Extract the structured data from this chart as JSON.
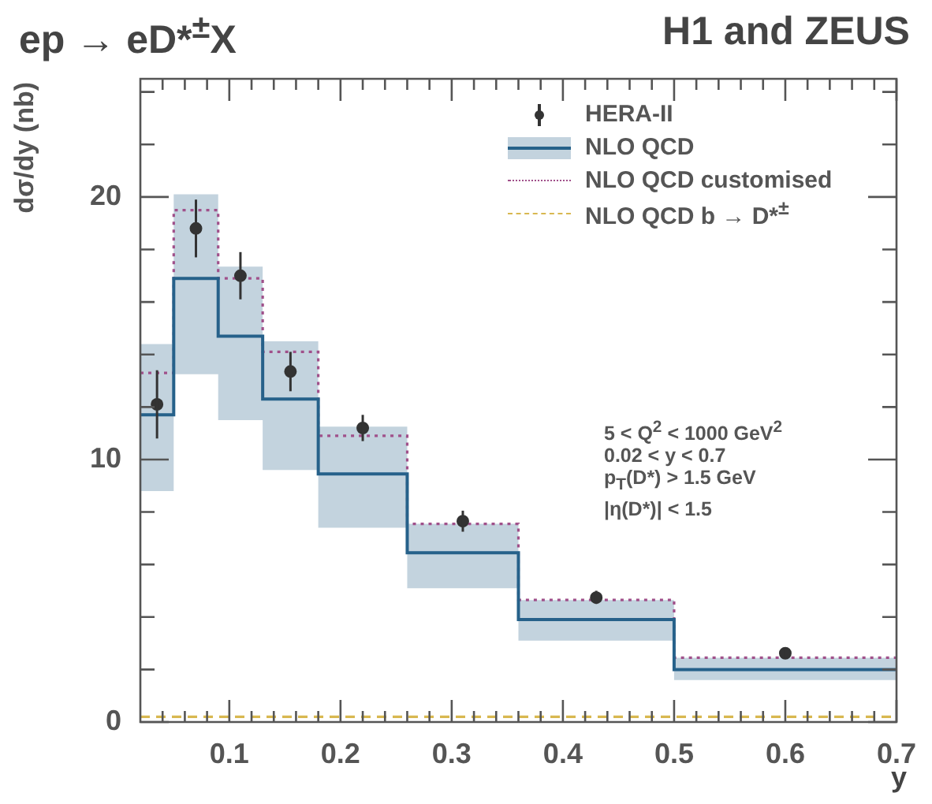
{
  "chart_data": {
    "type": "step",
    "title": "ep → eD*$^{±}$X",
    "subtitle": "H1 and ZEUS",
    "xlabel": "y",
    "ylabel": "dσ/dy (nb)",
    "xlim": [
      0.02,
      0.7
    ],
    "ylim": [
      0,
      24.5
    ],
    "xticks": [
      {
        "value": 0.04,
        "label": null
      },
      {
        "value": 0.06,
        "label": null
      },
      {
        "value": 0.08,
        "label": null
      },
      0.1,
      {
        "value": 0.12,
        "label": null
      },
      {
        "value": 0.14,
        "label": null
      },
      {
        "value": 0.16,
        "label": null
      },
      {
        "value": 0.18,
        "label": null
      },
      0.2,
      {
        "value": 0.22,
        "label": null
      },
      {
        "value": 0.24,
        "label": null
      },
      {
        "value": 0.26,
        "label": null
      },
      {
        "value": 0.28,
        "label": null
      },
      0.3,
      {
        "value": 0.32,
        "label": null
      },
      {
        "value": 0.34,
        "label": null
      },
      {
        "value": 0.36,
        "label": null
      },
      {
        "value": 0.38,
        "label": null
      },
      0.4,
      {
        "value": 0.42,
        "label": null
      },
      {
        "value": 0.44,
        "label": null
      },
      {
        "value": 0.46,
        "label": null
      },
      {
        "value": 0.48,
        "label": null
      },
      0.5,
      {
        "value": 0.52,
        "label": null
      },
      {
        "value": 0.54,
        "label": null
      },
      {
        "value": 0.56,
        "label": null
      },
      {
        "value": 0.58,
        "label": null
      },
      0.6,
      {
        "value": 0.62,
        "label": null
      },
      {
        "value": 0.64,
        "label": null
      },
      {
        "value": 0.66,
        "label": null
      },
      {
        "value": 0.68,
        "label": null
      },
      0.7
    ],
    "yticks": [
      0,
      {
        "value": 2,
        "label": null
      },
      {
        "value": 4,
        "label": null
      },
      {
        "value": 6,
        "label": null
      },
      {
        "value": 8,
        "label": null
      },
      10,
      {
        "value": 12,
        "label": null
      },
      {
        "value": 14,
        "label": null
      },
      {
        "value": 16,
        "label": null
      },
      {
        "value": 18,
        "label": null
      },
      20,
      {
        "value": 22,
        "label": null
      },
      {
        "value": 24,
        "label": null
      }
    ],
    "grid": false,
    "legend": "top right",
    "series": [
      {
        "name": "HERA-II",
        "type": "scatter",
        "marker": "circle",
        "color": "#333333",
        "x": [
          0.035,
          0.07,
          0.11,
          0.155,
          0.22,
          0.31,
          0.43,
          0.6
        ],
        "values": [
          12.1,
          18.8,
          17.0,
          13.35,
          11.2,
          7.65,
          4.74,
          2.62
        ],
        "errors": [
          [
            10.8,
            13.4
          ],
          [
            17.7,
            19.9
          ],
          [
            16.1,
            17.9
          ],
          [
            12.6,
            14.1
          ],
          [
            10.7,
            11.7
          ],
          [
            7.25,
            8.05
          ],
          [
            4.5,
            5.0
          ],
          [
            2.47,
            2.77
          ]
        ]
      },
      {
        "name": "NLO QCD",
        "type": "step",
        "line_style": "solid",
        "color": "#26618a",
        "x": [
          0.02,
          0.05,
          0.09,
          0.13,
          0.18,
          0.26,
          0.36,
          0.5,
          0.7
        ],
        "values": [
          11.7,
          16.9,
          14.7,
          12.3,
          9.45,
          6.45,
          3.9,
          2.0,
          2.0
        ],
        "lower": [
          8.8,
          13.25,
          11.5,
          9.6,
          7.4,
          5.1,
          3.1,
          1.6,
          1.6
        ],
        "upper": [
          14.4,
          20.1,
          17.35,
          14.5,
          11.25,
          7.55,
          4.65,
          2.45,
          2.45
        ]
      },
      {
        "name": "NLO QCD customised",
        "type": "step",
        "line_style": "dotted",
        "color": "#a0508a",
        "x": [
          0.02,
          0.05,
          0.09,
          0.13,
          0.18,
          0.26,
          0.36,
          0.5,
          0.7
        ],
        "values": [
          13.3,
          19.5,
          16.9,
          14.1,
          10.9,
          7.55,
          4.65,
          2.45,
          2.45
        ]
      },
      {
        "name": "NLO QCD b → D*$^{±}$",
        "type": "step",
        "line_style": "dashed",
        "color": "#d8b850",
        "x": [
          0.02,
          0.05,
          0.09,
          0.13,
          0.18,
          0.26,
          0.36,
          0.5,
          0.7
        ],
        "values": [
          0.2,
          0.2,
          0.2,
          0.2,
          0.2,
          0.2,
          0.2,
          0.2,
          0.2
        ]
      }
    ],
    "annotations": [
      "5 < Q$^{2}$ < 1000 GeV$^{2}$",
      "0.02 < y < 0.7",
      "p$_{T}$(D*) > 1.5 GeV",
      "|η(D*)| < 1.5"
    ]
  }
}
